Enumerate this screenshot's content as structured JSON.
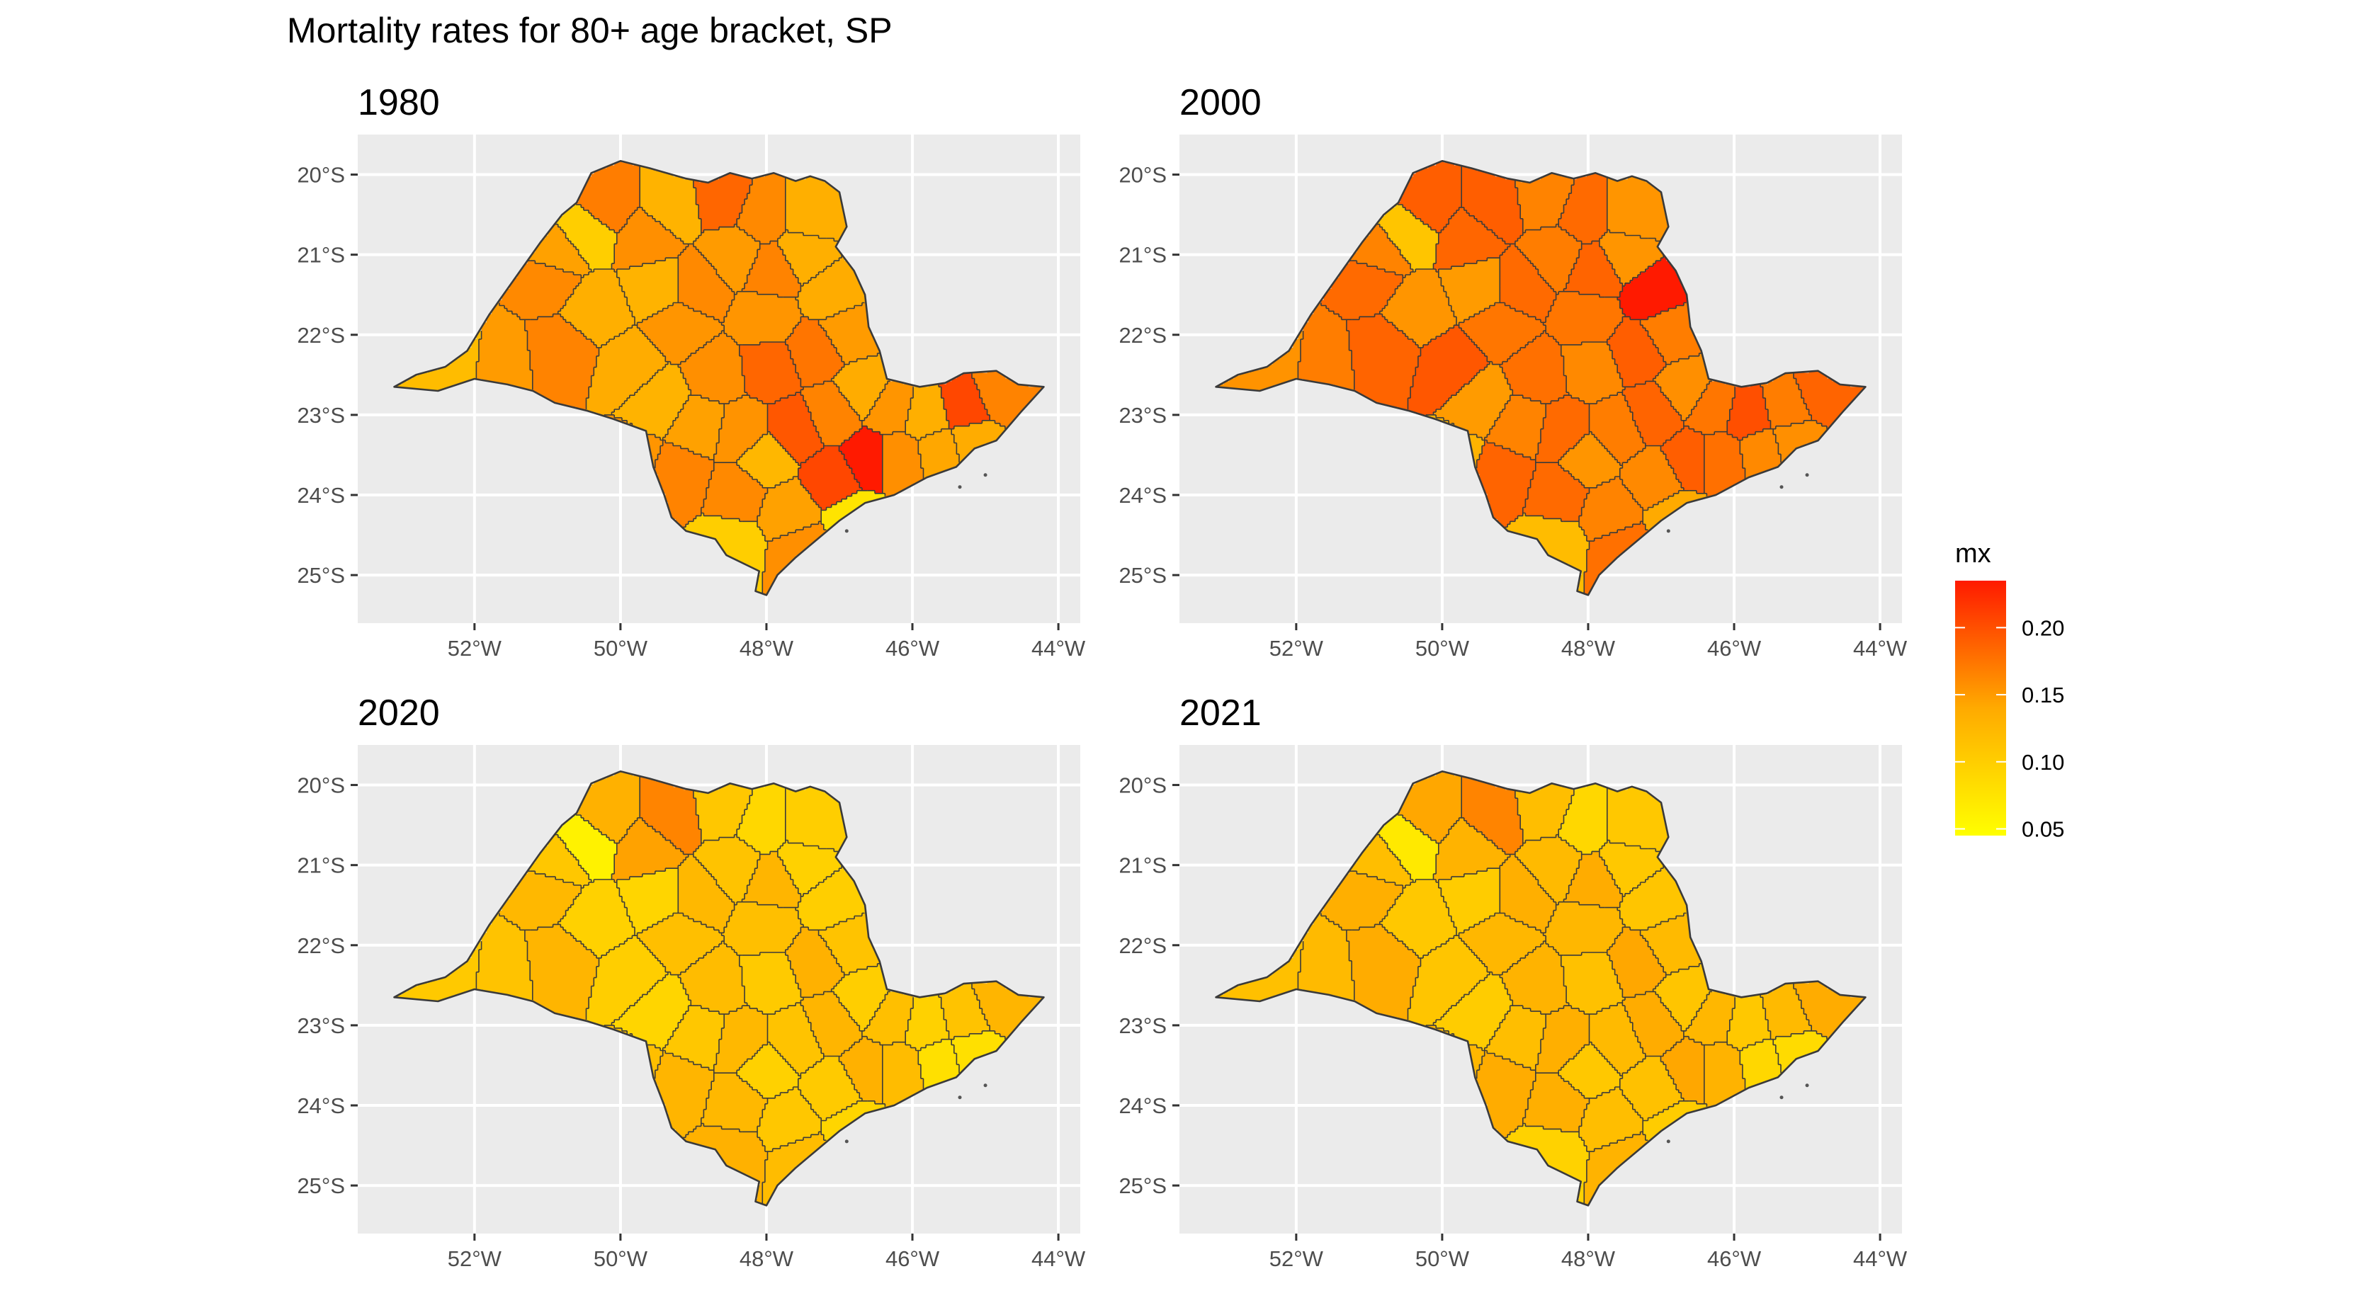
{
  "title": "Mortality rates for 80+ age bracket, SP",
  "x_ticks": [
    "52°W",
    "50°W",
    "48°W",
    "46°W",
    "44°W"
  ],
  "x_tick_values": [
    -52,
    -50,
    -48,
    -46,
    -44
  ],
  "y_ticks": [
    "20°S",
    "21°S",
    "22°S",
    "23°S",
    "24°S",
    "25°S"
  ],
  "y_tick_values": [
    -20,
    -21,
    -22,
    -23,
    -24,
    -25
  ],
  "xlim": [
    -53.6,
    -43.7
  ],
  "ylim": [
    -25.6,
    -19.5
  ],
  "legend": {
    "title": "mx",
    "labels": [
      "0.20",
      "0.15",
      "0.10",
      "0.05"
    ],
    "values": [
      0.2,
      0.15,
      0.1,
      0.05
    ],
    "range": [
      0.045,
      0.235
    ],
    "color_low": "#ffff00",
    "color_high": "#ff1a00"
  },
  "panels": [
    {
      "year": "1980",
      "base": 0.15,
      "overrides": [
        {
          "region": 30,
          "mx": 0.235
        },
        {
          "region": 31,
          "mx": 0.205
        },
        {
          "region": 37,
          "mx": 0.205
        },
        {
          "region": 26,
          "mx": 0.195
        },
        {
          "region": 12,
          "mx": 0.185
        },
        {
          "region": 20,
          "mx": 0.185
        },
        {
          "region": 19,
          "mx": 0.175
        },
        {
          "region": 1,
          "mx": 0.17
        },
        {
          "region": 25,
          "mx": 0.125
        },
        {
          "region": 33,
          "mx": 0.075
        },
        {
          "region": 9,
          "mx": 0.1
        },
        {
          "region": 0,
          "mx": 0.12
        },
        {
          "region": 41,
          "mx": 0.1
        },
        {
          "region": 24,
          "mx": 0.155
        }
      ]
    },
    {
      "year": "2000",
      "base": 0.17,
      "overrides": [
        {
          "region": 17,
          "mx": 0.235
        },
        {
          "region": 36,
          "mx": 0.2
        },
        {
          "region": 6,
          "mx": 0.195
        },
        {
          "region": 11,
          "mx": 0.19
        },
        {
          "region": 10,
          "mx": 0.185
        },
        {
          "region": 9,
          "mx": 0.11
        },
        {
          "region": 41,
          "mx": 0.12
        },
        {
          "region": 40,
          "mx": 0.13
        },
        {
          "region": 33,
          "mx": 0.14
        },
        {
          "region": 0,
          "mx": 0.155
        }
      ]
    },
    {
      "year": "2020",
      "base": 0.112,
      "overrides": [
        {
          "region": 9,
          "mx": 0.06
        },
        {
          "region": 39,
          "mx": 0.08
        },
        {
          "region": 42,
          "mx": 0.08
        },
        {
          "region": 11,
          "mx": 0.165
        },
        {
          "region": 10,
          "mx": 0.145
        },
        {
          "region": 13,
          "mx": 0.09
        },
        {
          "region": 14,
          "mx": 0.1
        },
        {
          "region": 0,
          "mx": 0.105
        }
      ]
    },
    {
      "year": "2021",
      "base": 0.122,
      "overrides": [
        {
          "region": 9,
          "mx": 0.07
        },
        {
          "region": 11,
          "mx": 0.165
        },
        {
          "region": 39,
          "mx": 0.085
        },
        {
          "region": 13,
          "mx": 0.09
        },
        {
          "region": 42,
          "mx": 0.09
        },
        {
          "region": 41,
          "mx": 0.095
        },
        {
          "region": 0,
          "mx": 0.115
        }
      ]
    }
  ]
}
